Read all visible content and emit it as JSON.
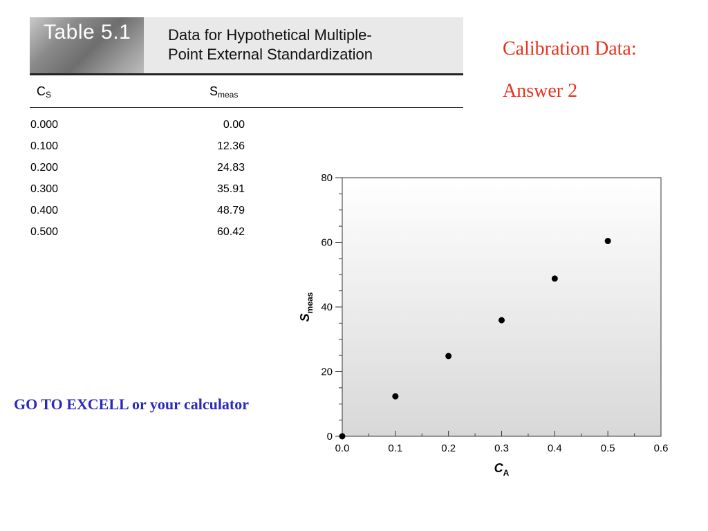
{
  "table": {
    "badge": "Table 5.1",
    "caption_line1": "Data for Hypothetical Multiple-",
    "caption_line2": "Point External Standardization",
    "col1_main": "C",
    "col1_sub": "S",
    "col2_main": "S",
    "col2_sub": "meas",
    "rows": [
      {
        "cs": "0.000",
        "s": "0.00"
      },
      {
        "cs": "0.100",
        "s": "12.36"
      },
      {
        "cs": "0.200",
        "s": "24.83"
      },
      {
        "cs": "0.300",
        "s": "35.91"
      },
      {
        "cs": "0.400",
        "s": "48.79"
      },
      {
        "cs": "0.500",
        "s": "60.42"
      }
    ]
  },
  "slide": {
    "title_line1": "Calibration Data:",
    "title_line2": "Answer 2",
    "instruction": "GO TO EXCELL or your calculator"
  },
  "chart_data": {
    "type": "scatter",
    "x": [
      0.0,
      0.1,
      0.2,
      0.3,
      0.4,
      0.5
    ],
    "y": [
      0.0,
      12.36,
      24.83,
      35.91,
      48.79,
      60.42
    ],
    "xlabel_main": "C",
    "xlabel_sub": "A",
    "ylabel_main": "S",
    "ylabel_sub": "meas",
    "xlim": [
      0.0,
      0.6
    ],
    "ylim": [
      0,
      80
    ],
    "xticks": [
      "0.0",
      "0.1",
      "0.2",
      "0.3",
      "0.4",
      "0.5",
      "0.6"
    ],
    "yticks": [
      "0",
      "20",
      "40",
      "60",
      "80"
    ],
    "grid": false,
    "background": "gradient-gray",
    "marker_color": "#000000"
  }
}
